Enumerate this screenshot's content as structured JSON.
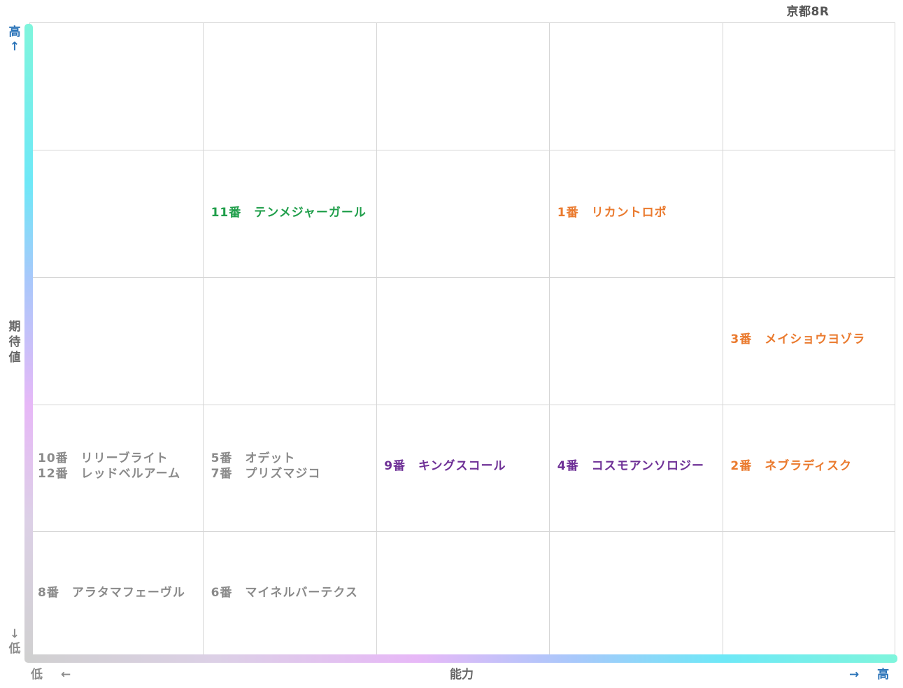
{
  "title": "京都8R",
  "axes": {
    "y_high": "高",
    "y_high_arrow": "↑",
    "y_low": "低",
    "y_low_arrow": "↓",
    "y_label": "期\n待\n値",
    "x_low": "低",
    "x_low_arrow": "←",
    "x_label": "能力",
    "x_high": "高",
    "x_high_arrow": "→"
  },
  "colors": {
    "green": "#1f9e4a",
    "orange": "#ea7a2e",
    "purple": "#6e3096",
    "gray": "#8a8a8a",
    "axis_blue": "#2a73b8"
  },
  "chart_data": {
    "type": "scatter",
    "title": "京都8R",
    "xlabel": "能力",
    "ylabel": "期待値",
    "xlim": [
      1,
      5
    ],
    "ylim": [
      1,
      5
    ],
    "grid": true,
    "cells": [
      {
        "x": 2,
        "y": 4,
        "color": "green",
        "labels": [
          "11番　テンメジャーガール"
        ]
      },
      {
        "x": 4,
        "y": 4,
        "color": "orange",
        "labels": [
          "1番　リカントロポ"
        ]
      },
      {
        "x": 5,
        "y": 3,
        "color": "orange",
        "labels": [
          "3番　メイショウヨゾラ"
        ]
      },
      {
        "x": 1,
        "y": 2,
        "color": "gray",
        "labels": [
          "10番　リリーブライト",
          "12番　レッドベルアーム"
        ]
      },
      {
        "x": 2,
        "y": 2,
        "color": "gray",
        "labels": [
          "5番　オデット",
          "7番　プリズマジコ"
        ]
      },
      {
        "x": 3,
        "y": 2,
        "color": "purple",
        "labels": [
          "9番　キングスコール"
        ]
      },
      {
        "x": 4,
        "y": 2,
        "color": "purple",
        "labels": [
          "4番　コスモアンソロジー"
        ]
      },
      {
        "x": 5,
        "y": 2,
        "color": "orange",
        "labels": [
          "2番　ネブラディスク"
        ]
      },
      {
        "x": 1,
        "y": 1,
        "color": "gray",
        "labels": [
          "8番　アラタマフェーヴル"
        ]
      },
      {
        "x": 2,
        "y": 1,
        "color": "gray",
        "labels": [
          "6番　マイネルバーテクス"
        ]
      }
    ]
  }
}
